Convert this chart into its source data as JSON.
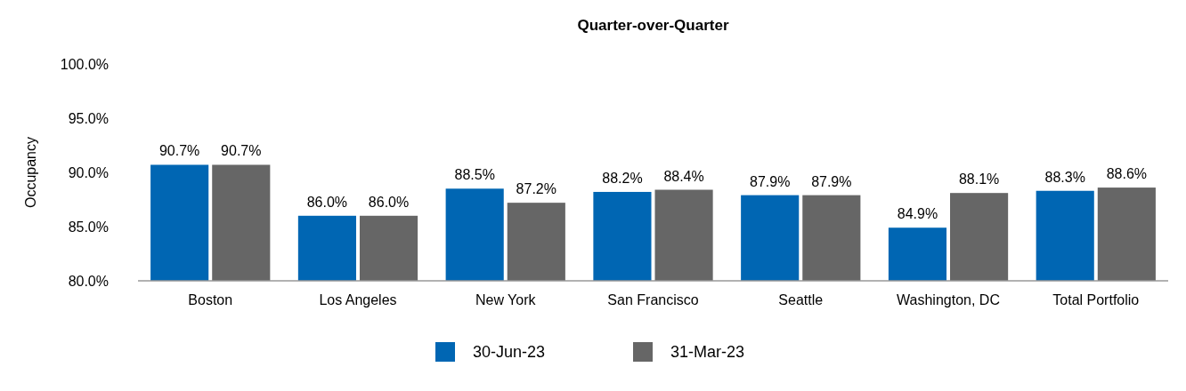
{
  "chart_data": {
    "type": "bar",
    "title": "Quarter-over-Quarter",
    "ylabel": "Occupancy",
    "categories": [
      "Boston",
      "Los Angeles",
      "New York",
      "San Francisco",
      "Seattle",
      "Washington, DC",
      "Total Portfolio"
    ],
    "series": [
      {
        "name": "30-Jun-23",
        "color": "#0066b3",
        "values": [
          90.7,
          86.0,
          88.5,
          88.2,
          87.9,
          84.9,
          88.3
        ],
        "value_labels": [
          "90.7%",
          "86.0%",
          "88.5%",
          "88.2%",
          "87.9%",
          "84.9%",
          "88.3%"
        ]
      },
      {
        "name": "31-Mar-23",
        "color": "#666666",
        "values": [
          90.7,
          86.0,
          87.2,
          88.4,
          87.9,
          88.1,
          88.6
        ],
        "value_labels": [
          "90.7%",
          "86.0%",
          "87.2%",
          "88.4%",
          "87.9%",
          "88.1%",
          "88.6%"
        ]
      }
    ],
    "ylim": [
      80,
      100
    ],
    "yticks": [
      {
        "value": 80,
        "label": "80.0%"
      },
      {
        "value": 85,
        "label": "85.0%"
      },
      {
        "value": 90,
        "label": "90.0%"
      },
      {
        "value": 95,
        "label": "95.0%"
      },
      {
        "value": 100,
        "label": "100.0%"
      }
    ],
    "grid": false,
    "legend": "bottom"
  }
}
